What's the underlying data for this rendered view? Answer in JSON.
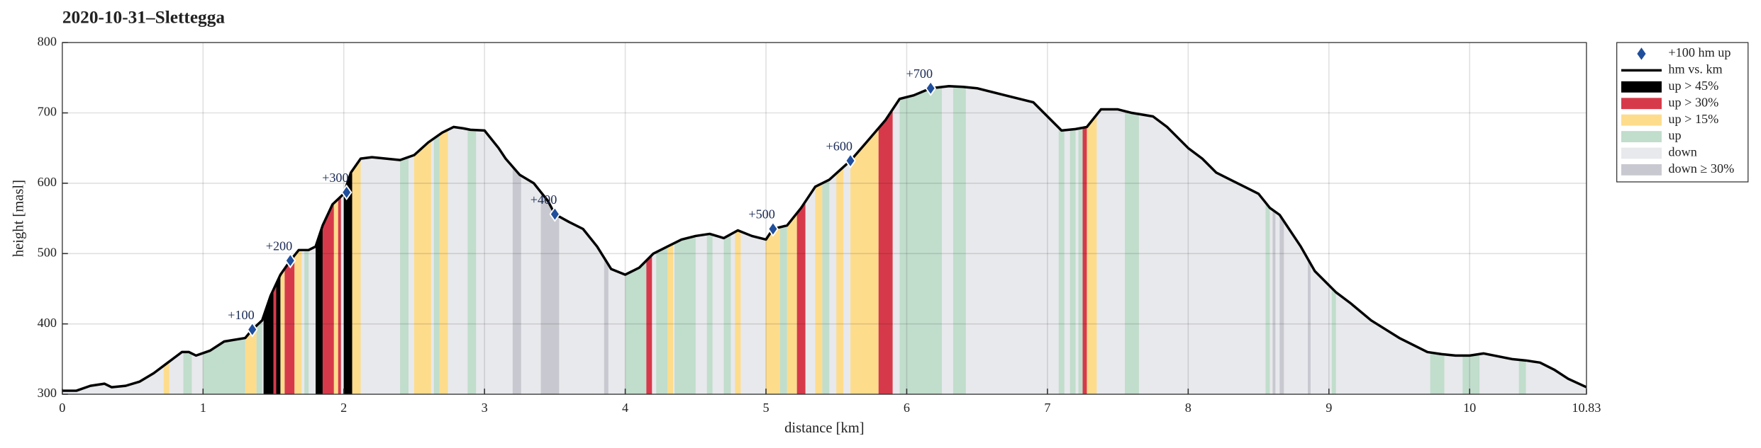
{
  "chart_data": {
    "type": "area",
    "title": "2020-10-31–Slettegga",
    "xlabel": "distance [km]",
    "ylabel": "height [masl]",
    "xlim": [
      0,
      10.83
    ],
    "ylim": [
      300,
      800
    ],
    "xticks": [
      0,
      1,
      2,
      3,
      4,
      5,
      6,
      7,
      8,
      9,
      10,
      10.83
    ],
    "yticks": [
      300,
      400,
      500,
      600,
      700,
      800
    ],
    "grid": true,
    "legend": "outside upper right",
    "series": [
      {
        "name": "hm vs. km",
        "color": "#000000",
        "x": [
          0,
          0.1,
          0.2,
          0.3,
          0.35,
          0.45,
          0.55,
          0.65,
          0.75,
          0.85,
          0.9,
          0.95,
          1.05,
          1.15,
          1.3,
          1.35,
          1.42,
          1.48,
          1.55,
          1.62,
          1.68,
          1.75,
          1.8,
          1.85,
          1.92,
          2.0,
          2.05,
          2.12,
          2.2,
          2.4,
          2.5,
          2.6,
          2.7,
          2.78,
          2.85,
          2.9,
          3.0,
          3.1,
          3.15,
          3.25,
          3.35,
          3.45,
          3.5,
          3.6,
          3.7,
          3.8,
          3.9,
          4.0,
          4.1,
          4.2,
          4.3,
          4.4,
          4.5,
          4.6,
          4.7,
          4.8,
          4.9,
          5.0,
          5.05,
          5.15,
          5.25,
          5.35,
          5.45,
          5.6,
          5.7,
          5.85,
          5.95,
          6.05,
          6.17,
          6.3,
          6.4,
          6.5,
          6.7,
          6.9,
          7.0,
          7.1,
          7.2,
          7.28,
          7.38,
          7.5,
          7.6,
          7.75,
          7.85,
          8.0,
          8.1,
          8.2,
          8.4,
          8.5,
          8.58,
          8.65,
          8.8,
          8.9,
          9.0,
          9.05,
          9.15,
          9.3,
          9.5,
          9.7,
          9.8,
          9.9,
          10.0,
          10.1,
          10.3,
          10.4,
          10.5,
          10.6,
          10.7,
          10.83
        ],
        "values": [
          305,
          305,
          312,
          315,
          310,
          312,
          318,
          330,
          345,
          360,
          360,
          355,
          362,
          375,
          380,
          392,
          405,
          440,
          470,
          490,
          505,
          505,
          510,
          540,
          570,
          585,
          615,
          635,
          637,
          633,
          640,
          658,
          672,
          680,
          678,
          676,
          675,
          650,
          635,
          612,
          600,
          575,
          556,
          545,
          535,
          510,
          478,
          470,
          480,
          500,
          510,
          520,
          525,
          528,
          522,
          533,
          525,
          520,
          535,
          540,
          565,
          595,
          605,
          632,
          655,
          690,
          720,
          725,
          735,
          738,
          737,
          735,
          725,
          715,
          695,
          675,
          677,
          680,
          705,
          705,
          700,
          695,
          680,
          650,
          635,
          615,
          595,
          585,
          565,
          555,
          510,
          475,
          455,
          445,
          430,
          405,
          380,
          360,
          357,
          355,
          355,
          358,
          350,
          348,
          345,
          335,
          322,
          310
        ]
      }
    ],
    "markers": {
      "name": "+100 hm up",
      "color": "#1f4e9c",
      "x": [
        1.35,
        1.62,
        2.02,
        3.5,
        5.05,
        5.6,
        6.17
      ],
      "values": [
        392,
        490,
        587,
        556,
        535,
        632,
        735
      ],
      "labels": [
        "+100",
        "+200",
        "+300",
        "+400",
        "+500",
        "+600",
        "+700"
      ]
    },
    "kinds": [
      {
        "name": "up > 45%",
        "color": "#000000"
      },
      {
        "name": "up > 30%",
        "color": "#d63a4a"
      },
      {
        "name": "up > 15%",
        "color": "#fddc8c"
      },
      {
        "name": "up",
        "color": "#c1ddcc"
      },
      {
        "name": "down",
        "color": "#e8e9ec"
      },
      {
        "name": "down ≥ 30%",
        "color": "#c8c9d0"
      }
    ],
    "bands": {
      "start": [
        0.72,
        0.86,
        1.0,
        1.3,
        1.38,
        1.43,
        1.5,
        1.52,
        1.55,
        1.58,
        1.65,
        1.72,
        1.8,
        1.85,
        1.93,
        1.96,
        2.0,
        2.06,
        2.4,
        2.5,
        2.64,
        2.68,
        2.88,
        3.2,
        3.4,
        3.85,
        4.0,
        4.15,
        4.22,
        4.3,
        4.35,
        4.58,
        4.7,
        4.78,
        5.0,
        5.1,
        5.15,
        5.22,
        5.35,
        5.4,
        5.5,
        5.6,
        5.8,
        5.95,
        6.0,
        6.33,
        7.08,
        7.16,
        7.22,
        7.25,
        7.28,
        7.55,
        8.55,
        8.6,
        8.65,
        8.85,
        9.02,
        9.72,
        9.95,
        10.35
      ],
      "end": [
        0.76,
        0.92,
        1.3,
        1.38,
        1.42,
        1.5,
        1.52,
        1.55,
        1.58,
        1.65,
        1.7,
        1.75,
        1.85,
        1.93,
        1.96,
        1.98,
        2.06,
        2.12,
        2.46,
        2.62,
        2.68,
        2.74,
        2.94,
        3.26,
        3.53,
        3.88,
        4.15,
        4.19,
        4.3,
        4.34,
        4.5,
        4.62,
        4.75,
        4.82,
        5.1,
        5.15,
        5.22,
        5.28,
        5.4,
        5.45,
        5.55,
        5.8,
        5.9,
        6.0,
        6.25,
        6.42,
        7.12,
        7.2,
        7.25,
        7.28,
        7.35,
        7.65,
        8.58,
        8.62,
        8.68,
        8.87,
        9.05,
        9.82,
        10.07,
        10.4
      ],
      "kind": [
        2,
        3,
        3,
        2,
        3,
        0,
        1,
        0,
        2,
        1,
        2,
        3,
        0,
        1,
        2,
        1,
        0,
        2,
        3,
        2,
        3,
        2,
        3,
        5,
        5,
        5,
        3,
        1,
        3,
        2,
        3,
        3,
        3,
        2,
        2,
        3,
        2,
        1,
        2,
        3,
        2,
        2,
        1,
        3,
        3,
        3,
        3,
        3,
        3,
        1,
        2,
        3,
        3,
        5,
        5,
        5,
        3,
        3,
        3,
        3
      ]
    }
  }
}
